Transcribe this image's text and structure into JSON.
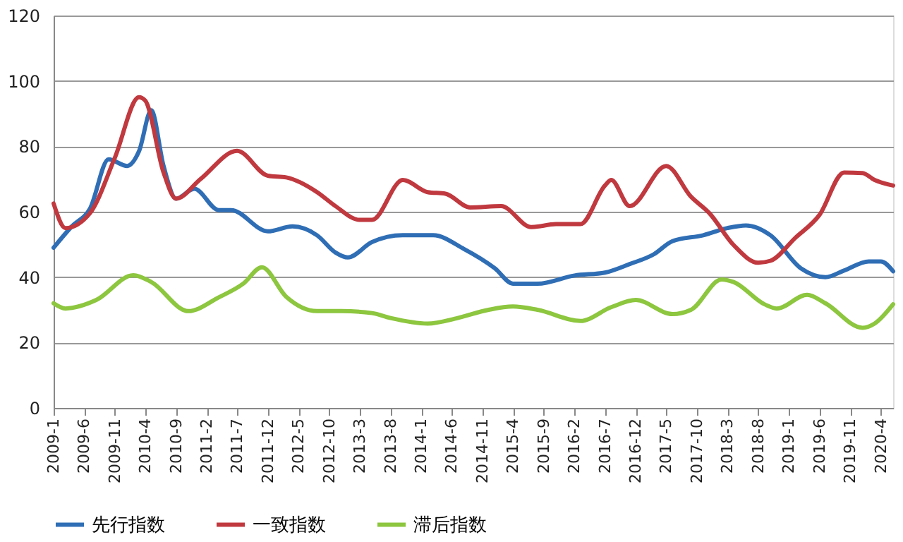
{
  "chart_data": {
    "type": "line",
    "xlim": [
      "2009-01",
      "2020-06"
    ],
    "xticks": [
      {
        "value": "2009-01",
        "label": "2009-1"
      },
      {
        "value": "2009-06",
        "label": "2009-6"
      },
      {
        "value": "2009-11",
        "label": "2009-11"
      },
      {
        "value": "2010-04",
        "label": "2010-4"
      },
      {
        "value": "2010-09",
        "label": "2010-9"
      },
      {
        "value": "2011-02",
        "label": "2011-2"
      },
      {
        "value": "2011-07",
        "label": "2011-7"
      },
      {
        "value": "2011-12",
        "label": "2011-12"
      },
      {
        "value": "2012-05",
        "label": "2012-5"
      },
      {
        "value": "2012-10",
        "label": "2012-10"
      },
      {
        "value": "2013-03",
        "label": "2013-3"
      },
      {
        "value": "2013-08",
        "label": "2013-8"
      },
      {
        "value": "2014-01",
        "label": "2014-1"
      },
      {
        "value": "2014-06",
        "label": "2014-6"
      },
      {
        "value": "2014-11",
        "label": "2014-11"
      },
      {
        "value": "2015-04",
        "label": "2015-4"
      },
      {
        "value": "2015-09",
        "label": "2015-9"
      },
      {
        "value": "2016-02",
        "label": "2016-2"
      },
      {
        "value": "2016-07",
        "label": "2016-7"
      },
      {
        "value": "2016-12",
        "label": "2016-12"
      },
      {
        "value": "2017-05",
        "label": "2017-5"
      },
      {
        "value": "2017-10",
        "label": "2017-10"
      },
      {
        "value": "2018-03",
        "label": "2018-3"
      },
      {
        "value": "2018-08",
        "label": "2018-8"
      },
      {
        "value": "2019-01",
        "label": "2019-1"
      },
      {
        "value": "2019-06",
        "label": "2019-6"
      },
      {
        "value": "2019-11",
        "label": "2019-11"
      },
      {
        "value": "2020-04",
        "label": "2020-4"
      }
    ],
    "ylim": [
      0,
      120
    ],
    "yticks": [
      0,
      20,
      40,
      60,
      80,
      100,
      120
    ],
    "grid": "y",
    "legend": "bottom",
    "marker": "none",
    "line_style": "solid",
    "series": [
      {
        "name": "先行指数",
        "color": "#2f6eb5",
        "x": [
          "2009-01",
          "2009-04",
          "2009-07",
          "2009-10",
          "2010-01",
          "2010-03",
          "2010-05",
          "2010-07",
          "2010-09",
          "2010-12",
          "2011-04",
          "2011-06",
          "2011-12",
          "2012-04",
          "2012-08",
          "2012-11",
          "2013-01",
          "2013-05",
          "2013-10",
          "2014-03",
          "2014-08",
          "2015-01",
          "2015-04",
          "2015-08",
          "2016-02",
          "2016-07",
          "2016-11",
          "2017-03",
          "2017-06",
          "2017-11",
          "2018-03",
          "2018-06",
          "2018-10",
          "2019-03",
          "2019-07",
          "2019-10",
          "2020-02",
          "2020-04",
          "2020-06"
        ],
        "values": [
          49,
          55.5,
          61,
          76,
          74,
          78.5,
          91,
          74,
          64,
          67,
          60.5,
          60.5,
          54,
          55.5,
          52.8,
          47.5,
          46,
          50.7,
          52.8,
          52.8,
          48.6,
          42.7,
          38,
          38,
          40.5,
          41.4,
          44,
          47,
          51,
          52.8,
          55,
          55.8,
          52.8,
          42.7,
          40,
          42,
          44.8,
          44.8,
          41.8
        ]
      },
      {
        "name": "一致指数",
        "color": "#c0393f",
        "x": [
          "2009-01",
          "2009-03",
          "2009-07",
          "2009-11",
          "2010-03",
          "2010-04",
          "2010-07",
          "2010-09",
          "2011-01",
          "2011-07",
          "2011-12",
          "2012-03",
          "2012-08",
          "2012-11",
          "2013-03",
          "2013-05",
          "2013-10",
          "2014-02",
          "2014-05",
          "2014-09",
          "2015-02",
          "2015-07",
          "2015-11",
          "2016-03",
          "2016-07",
          "2016-08",
          "2016-11",
          "2017-05",
          "2017-09",
          "2017-12",
          "2018-04",
          "2018-08",
          "2018-10",
          "2019-02",
          "2019-06",
          "2019-10",
          "2020-01",
          "2020-03",
          "2020-06"
        ],
        "values": [
          62.5,
          55,
          59.6,
          76.5,
          95,
          94,
          72,
          64,
          70,
          78.6,
          71,
          70.5,
          66,
          61.7,
          57.5,
          57.5,
          69.7,
          66,
          65.5,
          61.3,
          61.7,
          55.3,
          56.2,
          56.2,
          68,
          69.7,
          61.7,
          74,
          64.6,
          59.6,
          49.8,
          44.4,
          45,
          52,
          59,
          72,
          71.8,
          69.7,
          68
        ]
      },
      {
        "name": "滞后指数",
        "color": "#8dc63f",
        "x": [
          "2009-01",
          "2009-03",
          "2009-08",
          "2010-02",
          "2010-05",
          "2010-11",
          "2011-04",
          "2011-08",
          "2011-11",
          "2012-03",
          "2012-08",
          "2012-12",
          "2013-05",
          "2013-08",
          "2014-02",
          "2014-07",
          "2014-12",
          "2015-04",
          "2015-08",
          "2016-03",
          "2016-08",
          "2016-12",
          "2017-06",
          "2017-09",
          "2018-02",
          "2018-04",
          "2018-09",
          "2018-11",
          "2019-04",
          "2019-07",
          "2020-01",
          "2020-03",
          "2020-06"
        ],
        "values": [
          32,
          30.4,
          33,
          40.6,
          38.5,
          29.6,
          33.8,
          38,
          43,
          34,
          29.6,
          29.6,
          29,
          27.5,
          25.8,
          27.5,
          30,
          31,
          30,
          26.6,
          30.8,
          33,
          28.7,
          30,
          39.3,
          38.5,
          31.7,
          30.4,
          34.6,
          32,
          24.5,
          25.8,
          31.7
        ]
      }
    ]
  }
}
